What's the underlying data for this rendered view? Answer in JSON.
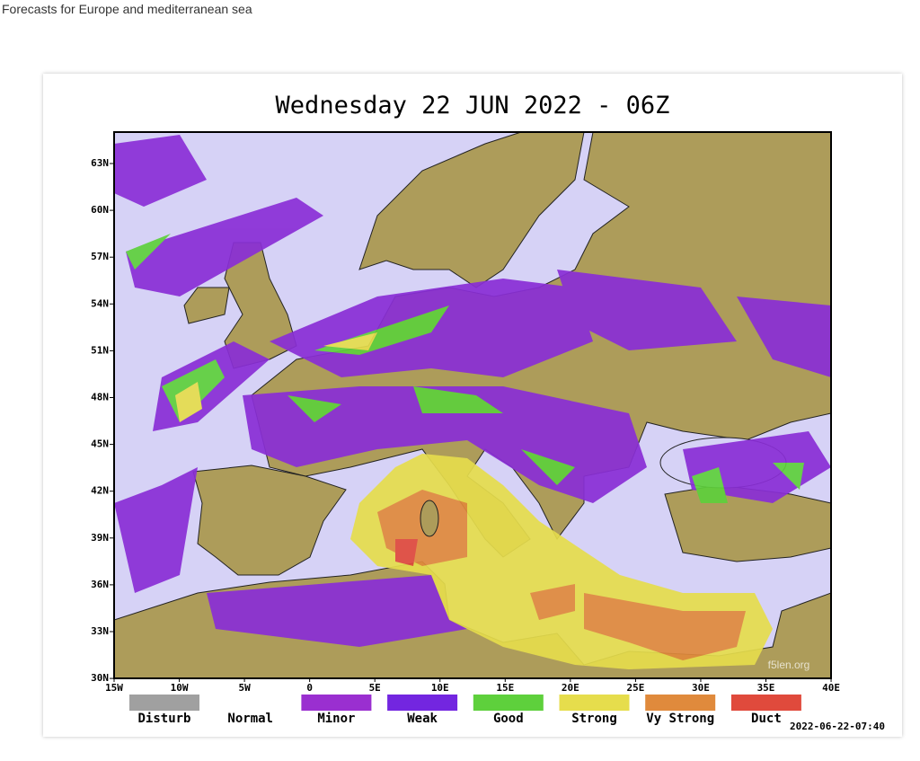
{
  "header": {
    "text": "Forecasts for Europe and mediterranean sea"
  },
  "map": {
    "title": "Wednesday 22 JUN 2022 - 06Z",
    "lat_labels": [
      "63N",
      "60N",
      "57N",
      "54N",
      "51N",
      "48N",
      "45N",
      "42N",
      "39N",
      "36N",
      "33N",
      "30N"
    ],
    "lon_labels": [
      "15W",
      "10W",
      "5W",
      "0",
      "5E",
      "10E",
      "15E",
      "20E",
      "25E",
      "30E",
      "35E",
      "40E"
    ],
    "watermark": "f5len.org",
    "timestamp": "2022-06-22-07:40"
  },
  "legend": [
    {
      "label": "Disturb",
      "color": "#a0a0a0"
    },
    {
      "label": "Normal"
    },
    {
      "label": "Minor",
      "color": "#9a2fd0"
    },
    {
      "label": "Weak",
      "color": "#7326e0"
    },
    {
      "label": "Good",
      "color": "#5ed03c"
    },
    {
      "label": "Strong",
      "color": "#e6dd4c"
    },
    {
      "label": "Vy Strong",
      "color": "#e08a3c"
    },
    {
      "label": "Duct",
      "color": "#e04a3c"
    }
  ]
}
